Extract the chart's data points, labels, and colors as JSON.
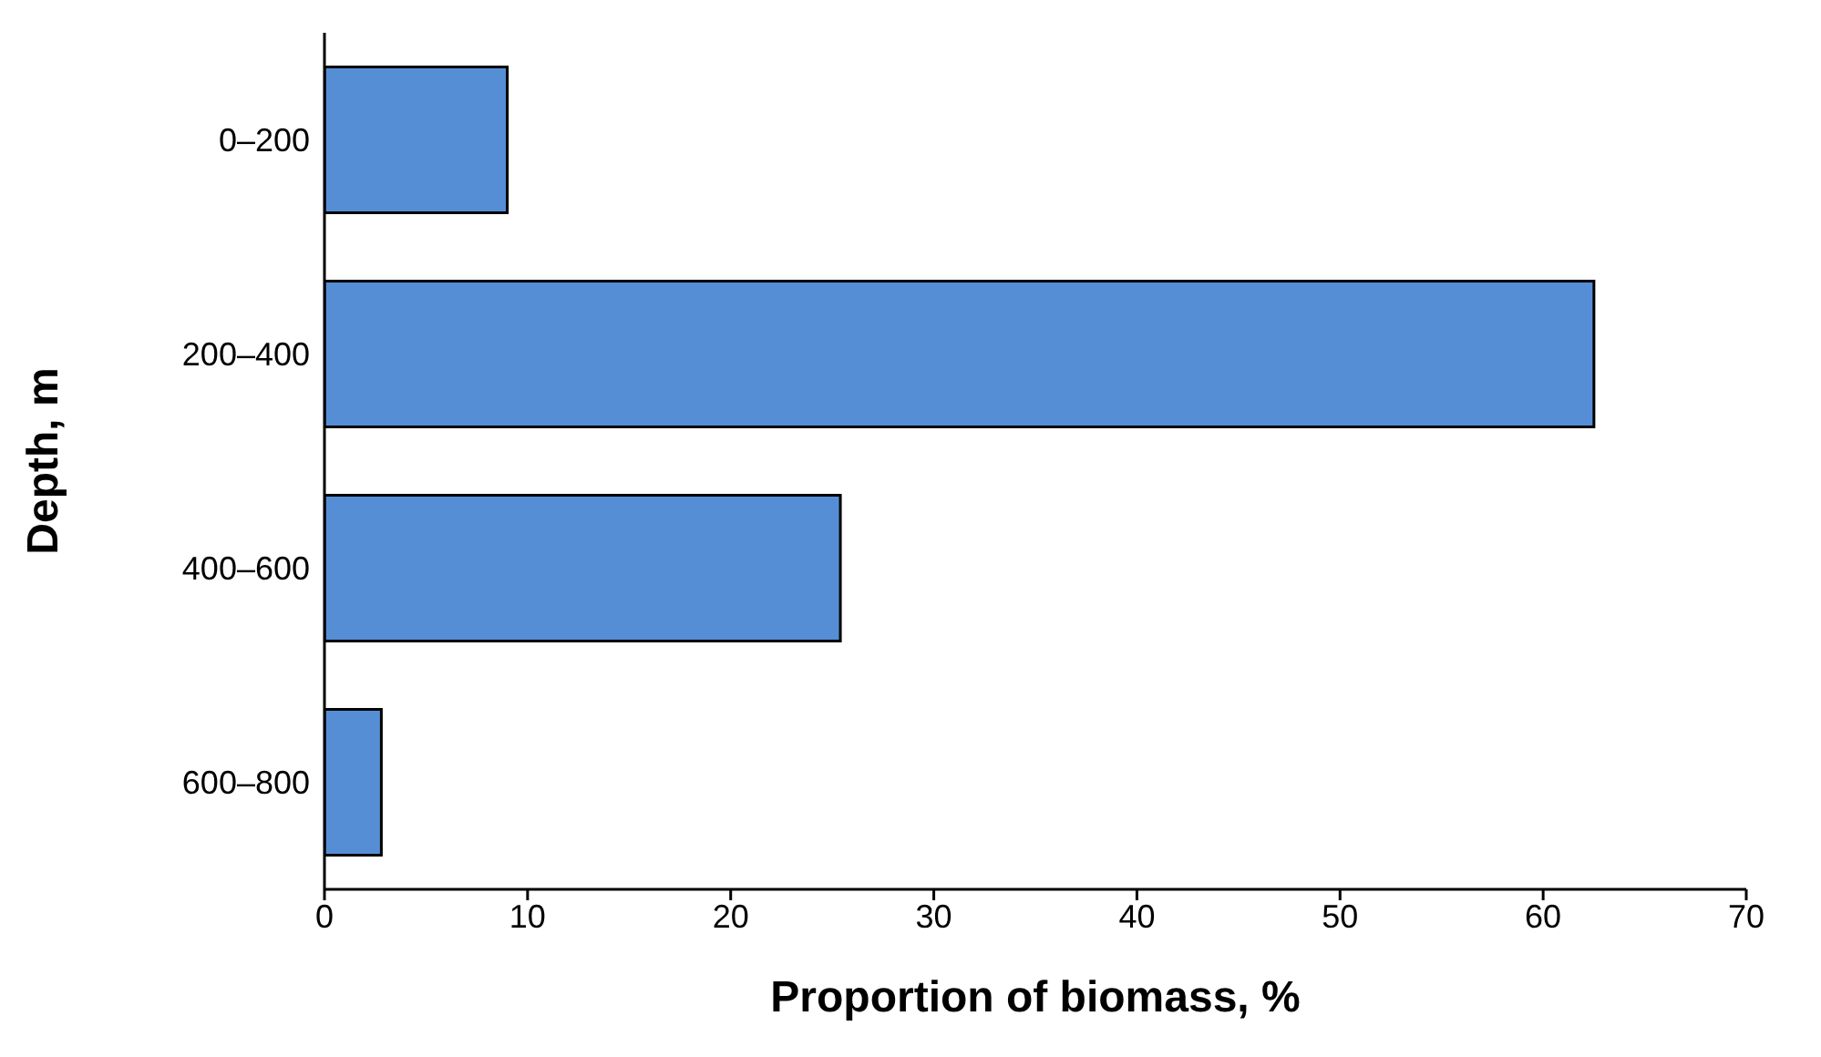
{
  "chart_data": {
    "type": "bar",
    "orientation": "horizontal",
    "xlabel": "Proportion of biomass, %",
    "ylabel": "Depth, m",
    "categories": [
      "0–200",
      "200–400",
      "400–600",
      "600–800"
    ],
    "values": [
      9.0,
      62.5,
      25.4,
      2.8
    ],
    "color": "#558ed5",
    "xlim": [
      0,
      70
    ],
    "xticks": [
      0,
      10,
      20,
      30,
      40,
      50,
      60,
      70
    ],
    "grid": false,
    "legend": false
  }
}
